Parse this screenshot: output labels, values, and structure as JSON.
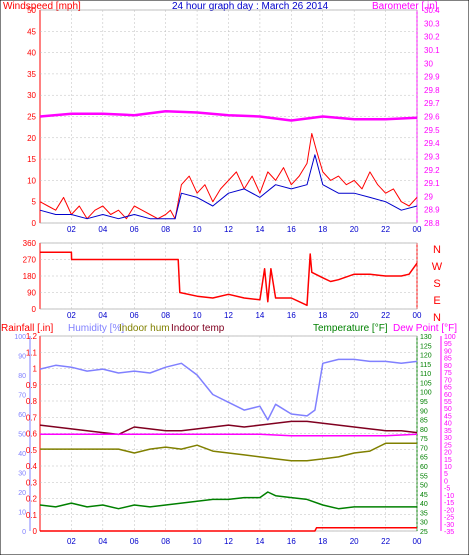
{
  "header": {
    "left_title": "Windspeed [mph]",
    "center_title": "24 hour graph day : March 26 2014",
    "right_title": "Barometer [.in]"
  },
  "colors": {
    "wind": "#ff0000",
    "avg": "#0000cc",
    "baro": "#ff00ff",
    "dir": "#ff0000",
    "humidity": "#8080ff",
    "indoor_hum": "#808000",
    "indoor_temp": "#800020",
    "temp": "#008000",
    "dew": "#ff00ff",
    "rain": "#ff0000",
    "grid": "#bcbcbc",
    "yellow": "#ffff00"
  },
  "chart_data": [
    {
      "type": "line",
      "panel": "wind-barometer",
      "x_tick_labels": [
        "02",
        "04",
        "06",
        "08",
        "10",
        "12",
        "14",
        "16",
        "18",
        "20",
        "22",
        "00"
      ],
      "left_axis": {
        "title": "Windspeed [mph]",
        "ticks": [
          "0",
          "5",
          "10",
          "15",
          "20",
          "25",
          "30",
          "35",
          "40",
          "45",
          "50"
        ],
        "range": [
          0,
          50
        ]
      },
      "right_axis": {
        "title": "Barometer [.in]",
        "ticks": [
          "28.8",
          "28.9",
          "29",
          "29.1",
          "29.2",
          "29.3",
          "29.4",
          "29.5",
          "29.6",
          "29.7",
          "29.8",
          "29.9",
          "30",
          "30.1",
          "30.2",
          "30.3",
          "30.4"
        ],
        "range": [
          28.8,
          30.4
        ]
      },
      "series": [
        {
          "key": "windspeed",
          "hours": [
            0,
            0.5,
            1,
            1.5,
            2,
            2.5,
            3,
            3.5,
            4,
            4.5,
            5,
            5.5,
            6,
            6.5,
            7,
            7.5,
            8,
            8.3,
            8.6,
            9,
            9.5,
            10,
            10.5,
            11,
            11.5,
            12,
            12.5,
            13,
            13.5,
            14,
            14.5,
            15,
            15.5,
            16,
            16.5,
            17,
            17.3,
            17.6,
            18,
            18.5,
            19,
            19.5,
            20,
            20.5,
            21,
            21.5,
            22,
            22.5,
            23,
            23.5,
            24
          ],
          "values": [
            5,
            4,
            3,
            6,
            2,
            4,
            1,
            3,
            4,
            2,
            3,
            1,
            4,
            3,
            2,
            1,
            2,
            3,
            1,
            9,
            11,
            7,
            9,
            5,
            8,
            10,
            12,
            8,
            11,
            7,
            12,
            10,
            13,
            9,
            11,
            14,
            21,
            17,
            12,
            10,
            11,
            9,
            10,
            8,
            12,
            9,
            7,
            8,
            5,
            4,
            6
          ]
        },
        {
          "key": "avg",
          "hours": [
            0,
            1,
            2,
            3,
            4,
            5,
            6,
            7,
            8,
            8.6,
            9,
            10,
            11,
            12,
            13,
            14,
            15,
            16,
            17,
            17.5,
            18,
            19,
            20,
            21,
            22,
            23,
            24
          ],
          "values": [
            3,
            2,
            2,
            1,
            2,
            1,
            2,
            1,
            1,
            1,
            7,
            6,
            4,
            7,
            8,
            6,
            9,
            8,
            9,
            16,
            9,
            7,
            7,
            6,
            5,
            3,
            4
          ]
        },
        {
          "key": "barometer",
          "hours": [
            0,
            2,
            4,
            6,
            8,
            10,
            12,
            14,
            16,
            18,
            20,
            22,
            24
          ],
          "values": [
            29.6,
            29.62,
            29.62,
            29.61,
            29.64,
            29.63,
            29.61,
            29.6,
            29.57,
            29.6,
            29.58,
            29.58,
            29.59
          ]
        }
      ]
    },
    {
      "type": "line",
      "panel": "wind-direction",
      "left_axis": {
        "ticks": [
          "0",
          "90",
          "180",
          "270",
          "360"
        ],
        "range": [
          0,
          360
        ]
      },
      "right_axis": {
        "ticks": [
          "N",
          "W",
          "S",
          "E",
          "N"
        ]
      },
      "series": [
        {
          "key": "direction",
          "hours": [
            0,
            2,
            2.01,
            4,
            6,
            8,
            8.8,
            8.9,
            10,
            11,
            12,
            13,
            14,
            14.3,
            14.5,
            14.7,
            15,
            16,
            17,
            17.2,
            17.3,
            18,
            18.5,
            19,
            20,
            21,
            22,
            23,
            23.5,
            24
          ],
          "values": [
            310,
            310,
            270,
            270,
            270,
            270,
            270,
            90,
            70,
            60,
            80,
            60,
            50,
            220,
            40,
            220,
            60,
            60,
            20,
            300,
            200,
            170,
            150,
            160,
            190,
            190,
            180,
            180,
            190,
            250
          ]
        }
      ]
    },
    {
      "type": "line",
      "panel": "humidity-temperature",
      "legend": [
        "Rainfall [.in]",
        "Humidity [%]",
        "Indoor hum",
        "Indoor temp",
        "Temperature [°F]",
        "Dew Point [°F]"
      ],
      "left_axis_rain": {
        "ticks": [
          "0",
          "0.1",
          "0.2",
          "0.3",
          "0.4",
          "0.5",
          "0.6",
          "0.7",
          "0.8",
          "0.9",
          "1",
          "1.1",
          "1.2"
        ],
        "range": [
          0,
          1.2
        ]
      },
      "left_axis_humidity": {
        "ticks": [
          "0",
          "10",
          "20",
          "30",
          "40",
          "50",
          "60",
          "70",
          "80",
          "90",
          "100"
        ],
        "range": [
          0,
          100
        ]
      },
      "right_axis_temp": {
        "ticks": [
          "25",
          "30",
          "35",
          "40",
          "45",
          "50",
          "55",
          "60",
          "65",
          "70",
          "75",
          "80",
          "85",
          "90",
          "95",
          "100",
          "105",
          "110",
          "115",
          "120",
          "125",
          "130"
        ],
        "range": [
          25,
          130
        ]
      },
      "right_axis_dew": {
        "ticks": [
          "-35",
          "-30",
          "-25",
          "-20",
          "-15",
          "-10",
          "-5",
          "0",
          "5",
          "10",
          "15",
          "20",
          "25",
          "30",
          "35",
          "40",
          "45",
          "50",
          "55",
          "60",
          "65",
          "70",
          "75",
          "80",
          "85",
          "90",
          "95",
          "100"
        ],
        "range": [
          -35,
          100
        ]
      },
      "series": [
        {
          "key": "humidity",
          "unit": "%",
          "hours": [
            0,
            1,
            2,
            3,
            4,
            5,
            6,
            7,
            8,
            9,
            10,
            11,
            12,
            13,
            14,
            14.5,
            15,
            16,
            17,
            17.5,
            18,
            19,
            20,
            21,
            22,
            23,
            24
          ],
          "values": [
            83,
            85,
            84,
            82,
            83,
            81,
            82,
            81,
            84,
            86,
            80,
            70,
            66,
            62,
            64,
            57,
            65,
            60,
            59,
            62,
            86,
            88,
            88,
            87,
            87,
            86,
            87
          ]
        },
        {
          "key": "indoor_temp",
          "unit": "F",
          "hours": [
            0,
            1,
            2,
            3,
            4,
            5,
            6,
            7,
            8,
            9,
            10,
            11,
            12,
            13,
            14,
            15,
            16,
            17,
            18,
            19,
            20,
            21,
            22,
            23,
            24
          ],
          "values": [
            82,
            81,
            80,
            79,
            78,
            77,
            81,
            80,
            79,
            79,
            80,
            81,
            82,
            81,
            82,
            83,
            84,
            84,
            83,
            82,
            81,
            80,
            79,
            79,
            78
          ]
        },
        {
          "key": "indoor_hum",
          "unit": "%",
          "hours": [
            0,
            1,
            2,
            3,
            4,
            5,
            6,
            7,
            8,
            9,
            10,
            11,
            12,
            13,
            14,
            15,
            16,
            17,
            18,
            19,
            20,
            21,
            22,
            23,
            24
          ],
          "values": [
            42,
            42,
            42,
            42,
            42,
            42,
            40,
            42,
            43,
            42,
            44,
            41,
            40,
            39,
            38,
            37,
            36,
            36,
            37,
            38,
            40,
            41,
            45,
            45,
            45
          ]
        },
        {
          "key": "temperature",
          "unit": "F",
          "hours": [
            0,
            1,
            2,
            3,
            4,
            5,
            6,
            7,
            8,
            9,
            10,
            11,
            12,
            13,
            14,
            14.5,
            15,
            16,
            17,
            18,
            19,
            20,
            21,
            22,
            23,
            24
          ],
          "values": [
            39,
            38,
            40,
            38,
            39,
            37,
            39,
            38,
            39,
            40,
            41,
            42,
            42,
            43,
            43,
            46,
            44,
            43,
            42,
            39,
            37,
            38,
            38,
            38,
            38,
            38
          ]
        },
        {
          "key": "dew_point",
          "unit": "F",
          "hours": [
            0,
            2,
            4,
            6,
            8,
            10,
            12,
            14,
            16,
            18,
            20,
            22,
            24
          ],
          "values": [
            32,
            32,
            32,
            32,
            32,
            32,
            32,
            32,
            31,
            31,
            31,
            31,
            32
          ]
        },
        {
          "key": "rainfall",
          "unit": "in",
          "hours": [
            0,
            17.5,
            17.6,
            24
          ],
          "values": [
            0,
            0,
            0.02,
            0.02
          ]
        }
      ]
    }
  ]
}
